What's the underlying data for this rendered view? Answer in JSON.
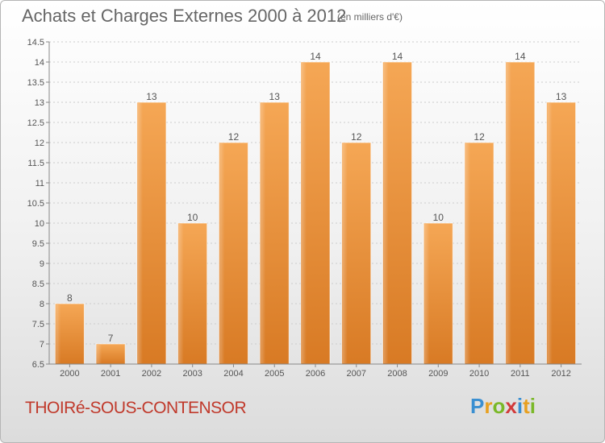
{
  "title": "Achats et Charges Externes 2000 à 2012",
  "subtitle": "(en milliers d'€)",
  "commune": "THOIRé-SOUS-CONTENSOR",
  "brand": {
    "letters": [
      "P",
      "r",
      "o",
      "x",
      "i",
      "t",
      "i"
    ],
    "colors": [
      "#3a8fd1",
      "#e8a020",
      "#7ab828",
      "#d23a3a",
      "#3a8fd1",
      "#e8a020",
      "#7ab828"
    ]
  },
  "colors": {
    "bar_light": "#f5a755",
    "bar_dark": "#d87a24",
    "axis": "#888888",
    "grid": "#cccccc"
  },
  "chart_data": {
    "type": "bar",
    "categories": [
      "2000",
      "2001",
      "2002",
      "2003",
      "2004",
      "2005",
      "2006",
      "2007",
      "2008",
      "2009",
      "2010",
      "2011",
      "2012"
    ],
    "values": [
      8,
      7,
      13,
      10,
      12,
      13,
      14,
      12,
      14,
      10,
      12,
      14,
      13
    ],
    "ylim": [
      6.5,
      14.5
    ],
    "yticks": [
      6.5,
      7,
      7.5,
      8,
      8.5,
      9,
      9.5,
      10,
      10.5,
      11,
      11.5,
      12,
      12.5,
      13,
      13.5,
      14,
      14.5
    ],
    "ytick_labels": [
      "6.5",
      "7",
      "7.5",
      "8",
      "8.5",
      "9",
      "9.5",
      "10",
      "10.5",
      "11",
      "11.5",
      "12",
      "12.5",
      "13",
      "13.5",
      "14",
      "14.5"
    ],
    "grid": true
  }
}
